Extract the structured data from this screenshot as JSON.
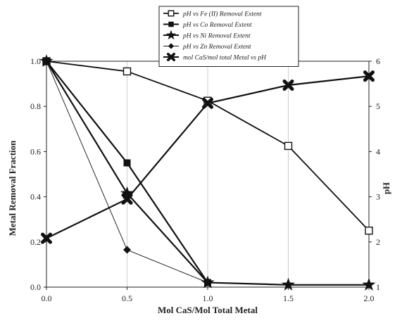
{
  "chart_data": {
    "type": "line",
    "xlabel": "Mol CaS/Mol Total Metal",
    "ylabel": "Metal Removal Fraction",
    "y2label": "pH",
    "xlim": [
      0,
      2
    ],
    "ylim": [
      0,
      1
    ],
    "y2lim": [
      1,
      6
    ],
    "x_ticks": [
      "0.0",
      "0.5",
      "1.0",
      "1.5",
      "2.0"
    ],
    "y_ticks": [
      "0.0",
      "0.2",
      "0.4",
      "0.6",
      "0.8",
      "1.0"
    ],
    "y2_ticks": [
      "1",
      "2",
      "3",
      "4",
      "5",
      "6"
    ],
    "grid": "vertical",
    "legend_position": "top-center",
    "series": [
      {
        "name": "pH vs Fe (II) Removal Extent",
        "axis": "left",
        "marker": "open-square",
        "line_width": 1.8,
        "x": [
          0,
          0.5,
          1.0,
          1.5,
          2.0
        ],
        "y": [
          1.0,
          0.955,
          0.825,
          0.625,
          0.25
        ]
      },
      {
        "name": "pH vs Co Removal Extent",
        "axis": "left",
        "marker": "filled-square",
        "line_width": 2.2,
        "x": [
          0,
          0.5,
          1.0
        ],
        "y": [
          1.0,
          0.55,
          0.02
        ]
      },
      {
        "name": "pH vs Ni Removal Extent",
        "axis": "left",
        "marker": "star",
        "line_width": 2.2,
        "x": [
          0,
          0.5,
          1.0,
          1.5,
          2.0
        ],
        "y": [
          1.0,
          0.415,
          0.02,
          0.01,
          0.01
        ]
      },
      {
        "name": "pH vs Zn Removal Extent",
        "axis": "left",
        "marker": "diamond",
        "line_width": 0.9,
        "x": [
          0,
          0.5,
          1.0
        ],
        "y": [
          1.0,
          0.165,
          0.02
        ]
      },
      {
        "name": "mol CaS/mol total Metal vs pH",
        "axis": "right",
        "marker": "x-cross",
        "line_width": 2.2,
        "x": [
          0,
          0.5,
          1.0,
          1.5,
          2.0
        ],
        "y": [
          2.08,
          2.95,
          5.07,
          5.47,
          5.67
        ]
      }
    ]
  }
}
